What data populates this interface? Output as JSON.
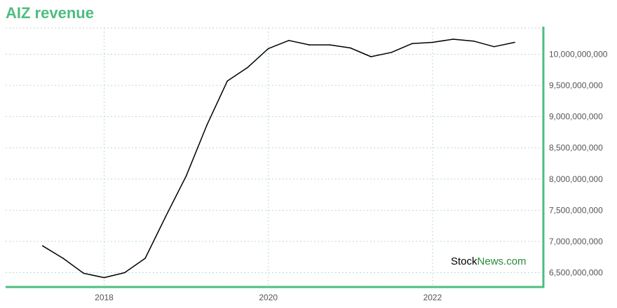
{
  "title": "AIZ revenue",
  "watermark": {
    "part1": "Stock",
    "part2": "News",
    "part3": ".com"
  },
  "colors": {
    "title": "#4dbd80",
    "axis": "#4dbd80",
    "grid": "#b9dccb",
    "line": "#000000"
  },
  "chart_data": {
    "type": "line",
    "title": "AIZ revenue",
    "xlabel": "",
    "ylabel": "",
    "y_ticks": [
      6500000000,
      7000000000,
      7500000000,
      8000000000,
      8500000000,
      9000000000,
      9500000000,
      10000000000
    ],
    "y_tick_labels": [
      "6,500,000,000",
      "7,000,000,000",
      "7,500,000,000",
      "8,000,000,000",
      "8,500,000,000",
      "9,000,000,000",
      "9,500,000,000",
      "10,000,000,000"
    ],
    "x_ticks": [
      2018,
      2020,
      2022
    ],
    "x_tick_labels": [
      "2018",
      "2020",
      "2022"
    ],
    "xlim": [
      2016.8,
      2023.35
    ],
    "ylim": [
      6270000000,
      10420000000
    ],
    "grid": true,
    "y_axis_position": "right",
    "series": [
      {
        "x": [
          2017.25,
          2017.5,
          2017.75,
          2018.0,
          2018.25,
          2018.5,
          2018.75,
          2019.0,
          2019.25,
          2019.5,
          2019.75,
          2020.0,
          2020.25,
          2020.5,
          2020.75,
          2021.0,
          2021.25,
          2021.5,
          2021.75,
          2022.0,
          2022.25,
          2022.5,
          2022.75,
          2023.0
        ],
        "values": [
          6930000000,
          6730000000,
          6490000000,
          6420000000,
          6500000000,
          6730000000,
          7400000000,
          8050000000,
          8860000000,
          9570000000,
          9790000000,
          10090000000,
          10220000000,
          10150000000,
          10150000000,
          10100000000,
          9960000000,
          10030000000,
          10170000000,
          10190000000,
          10240000000,
          10210000000,
          10120000000,
          10190000000
        ]
      }
    ]
  }
}
